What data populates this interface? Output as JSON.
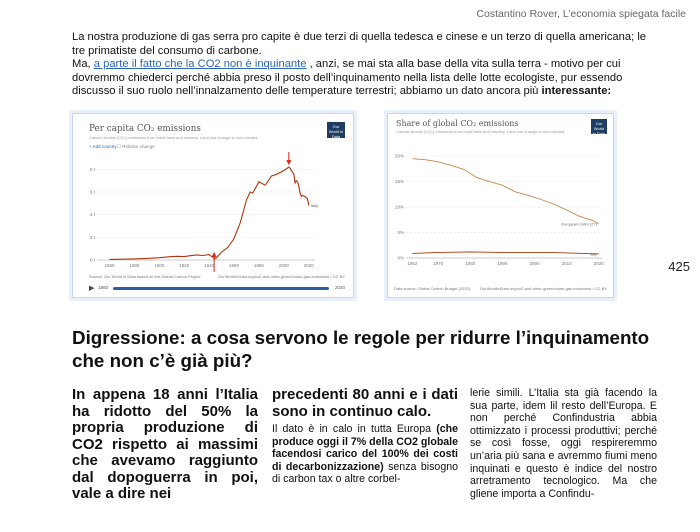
{
  "header": {
    "running_head": "Costantino Rover, L’economia spiegata facile"
  },
  "intro": {
    "p1": "La nostra produzione di gas serra pro capite è due terzi di quella tedesca e cinese e un terzo di quella americana; le tre primatiste del consumo di carbone.",
    "p2_a": "Ma, ",
    "p2_link": "a parte il fatto che la CO2 non è inquinante",
    "p2_b": " , anzi, se mai sta alla base della vita sulla terra - motivo per cui dovremmo chiederci perché abbia preso il posto dell’inquinamento nella lista delle lotte ecologiste, pur essendo discusso il suo ruolo nell’innalzamento delle temperature terrestri; abbiamo un dato ancora più ",
    "p2_bold": "interessante:"
  },
  "page_number": "425",
  "chart_data": [
    {
      "type": "line",
      "title": "Per capita CO₂ emissions",
      "subtitle": "Carbon dioxide (CO₂) emissions from fossil fuels and industry. Land use change is not included.",
      "controls": {
        "add_country": "Add country",
        "relative_change": "Relative change"
      },
      "logo": "Our World in Data",
      "x_ticks": [
        "1860",
        "1880",
        "1900",
        "1920",
        "1940",
        "1960",
        "1980",
        "2000",
        "2020"
      ],
      "y_ticks": [
        "0 t",
        "2 t",
        "4 t",
        "6 t",
        "8 t"
      ],
      "xlim": [
        1850,
        2025
      ],
      "ylim": [
        0,
        9
      ],
      "series": [
        {
          "name": "Italy",
          "color": "#b13507",
          "x": [
            1860,
            1870,
            1880,
            1890,
            1900,
            1910,
            1915,
            1920,
            1925,
            1930,
            1935,
            1940,
            1944,
            1945,
            1946,
            1950,
            1955,
            1960,
            1965,
            1970,
            1973,
            1975,
            1980,
            1985,
            1990,
            1995,
            2000,
            2004,
            2005,
            2006,
            2008,
            2009,
            2010,
            2011,
            2012,
            2013,
            2014,
            2015,
            2017,
            2019,
            2020
          ],
          "y": [
            0.05,
            0.07,
            0.1,
            0.14,
            0.2,
            0.3,
            0.33,
            0.3,
            0.38,
            0.45,
            0.4,
            0.48,
            0.15,
            0.12,
            0.2,
            0.7,
            1.1,
            1.9,
            3.3,
            5.3,
            6.0,
            5.9,
            6.9,
            6.6,
            7.4,
            7.6,
            7.9,
            8.2,
            8.1,
            7.9,
            7.6,
            6.8,
            7.0,
            6.9,
            6.5,
            5.9,
            5.6,
            5.7,
            5.6,
            5.4,
            4.8
          ]
        }
      ],
      "annotations": [
        "1944",
        "2004"
      ],
      "timeline": {
        "start": "1860",
        "end": "2020"
      },
      "source": "Source: Our World in Data based on the Global Carbon Project",
      "source_right": "OurWorldInData.org/co2-and-other-greenhouse-gas-emissions • CC BY"
    },
    {
      "type": "line",
      "title": "Share of global CO₂ emissions",
      "subtitle": "Carbon dioxide (CO₂) emissions from fossil fuels and industry. Land use change is not included.",
      "logo": "Our World in Data",
      "x_ticks": [
        "1962",
        "1970",
        "1980",
        "1990",
        "2000",
        "2010",
        "2020"
      ],
      "y_ticks": [
        "0%",
        "5%",
        "10%",
        "15%",
        "20%"
      ],
      "xlim": [
        1960,
        2021
      ],
      "ylim": [
        0,
        22
      ],
      "series": [
        {
          "name": "European Union (27)",
          "color": "#c8864a",
          "x": [
            1962,
            1966,
            1970,
            1974,
            1978,
            1982,
            1986,
            1990,
            1994,
            1998,
            2002,
            2006,
            2010,
            2014,
            2018,
            2020
          ],
          "y": [
            19.5,
            19.3,
            18.9,
            18.2,
            17.4,
            15.8,
            15.0,
            14.3,
            13.0,
            12.3,
            11.5,
            10.6,
            9.4,
            8.2,
            7.4,
            6.7
          ]
        },
        {
          "name": "Italy",
          "color": "#b13507",
          "x": [
            1962,
            1970,
            1980,
            1990,
            2000,
            2005,
            2010,
            2015,
            2020
          ],
          "y": [
            0.9,
            1.1,
            1.2,
            1.1,
            1.1,
            1.1,
            1.0,
            0.9,
            0.8
          ]
        }
      ],
      "source": "Data source: Global Carbon Budget (2020)",
      "source_right": "OurWorldInData.org/co2-and-other-greenhouse-gas-emissions • CC BY"
    }
  ],
  "section_title": "Digressione: a cosa servono le regole per ridurre l’inquinamento che non c’è già più?",
  "columns": {
    "col1": "In appena 18 anni l’Italia ha ridotto del 50% la propria produzione di CO2 rispetto ai massimi che avevamo raggiunto dal dopoguerra in poi, vale a dire nei",
    "col2_lead": "precedenti 80 anni e i dati sono in continuo calo.",
    "col2_body_a": "Il dato è in calo in tutta Europa ",
    "col2_body_bold": "(che produce oggi il 7% della CO2 globale facendosi carico del 100% dei costi di decarbonizzazione)",
    "col2_body_b": " senza bisogno di carbon tax o altre corbel-",
    "col3": "lerie simili. L’Italia sta già facendo la sua parte, idem lil resto dell’Europa. E non perché Confindustria abbia ottimizzato i processi produttivi; perché se così fosse, oggi respireremmo un’aria più sana e avremmo fiumi meno inquinati e questo è indice del nostro arretramento tecnologico. Ma che gliene importa a Confindu-"
  }
}
